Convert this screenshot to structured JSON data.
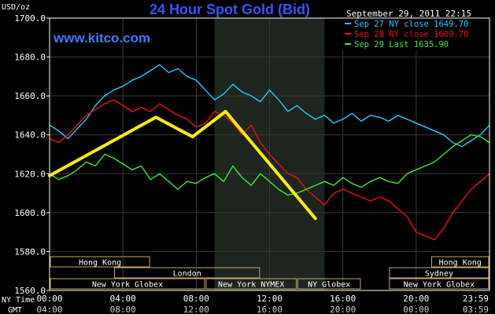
{
  "chart_data": {
    "type": "line",
    "title": "24 Hour Spot Gold (Bid)",
    "ylabel": "USD/oz",
    "watermark": "www.kitco.com",
    "datetime": "September 29, 2011 22:15",
    "ylim": [
      1560,
      1700
    ],
    "yticks": [
      1560,
      1580,
      1600,
      1620,
      1640,
      1660,
      1680,
      1700
    ],
    "ytick_labels": [
      "1560.0",
      "1580.0",
      "1600.0",
      "1620.0",
      "1640.0",
      "1660.0",
      "1680.0",
      "1700.0"
    ],
    "xlim": [
      0,
      24
    ],
    "xtick_labels": [
      {
        "hour": 0,
        "ny": "00:00",
        "gmt": "04:00"
      },
      {
        "hour": 4,
        "ny": "04:00",
        "gmt": "08:00"
      },
      {
        "hour": 8,
        "ny": "08:00",
        "gmt": "12:00"
      },
      {
        "hour": 12,
        "ny": "12:00",
        "gmt": "16:00"
      },
      {
        "hour": 16,
        "ny": "16:00",
        "gmt": "20:00"
      },
      {
        "hour": 20,
        "ny": "20:00",
        "gmt": "00:00"
      },
      {
        "hour": 24,
        "ny": "23:59",
        "gmt": "03:59"
      }
    ],
    "xaxis_row_labels": [
      "NY Time",
      "GMT"
    ],
    "shaded_region": [
      9,
      15
    ],
    "grid": true,
    "legend_placement": "top-right",
    "colors": {
      "background": "#000000",
      "frame": "#ffffff",
      "grid": "#3a3a3a",
      "shade": "#1e241e",
      "text": "#ffffff",
      "title": "#3355ff",
      "watermark": "#4477ff",
      "market_text": "#ffffff",
      "market_box": "#c9a86a"
    },
    "series": [
      {
        "name": "Sep 27 NY close 1649.70",
        "color": "#22ccff",
        "x": [
          0,
          0.5,
          1,
          1.5,
          2,
          2.5,
          3,
          3.5,
          4,
          4.5,
          5,
          5.5,
          6,
          6.5,
          7,
          7.5,
          8,
          8.5,
          9,
          9.5,
          10,
          10.5,
          11,
          11.5,
          12,
          12.5,
          13,
          13.5,
          14,
          14.5,
          15,
          15.5,
          16,
          16.5,
          17,
          17.5,
          18,
          18.5,
          19,
          19.5,
          20,
          20.5,
          21,
          21.5,
          22,
          22.5,
          23,
          23.5,
          24
        ],
        "y": [
          1645,
          1642,
          1638,
          1643,
          1648,
          1655,
          1660,
          1663,
          1665,
          1668,
          1670,
          1673,
          1676,
          1672,
          1674,
          1670,
          1668,
          1663,
          1658,
          1661,
          1666,
          1662,
          1660,
          1657,
          1663,
          1658,
          1652,
          1655,
          1651,
          1648,
          1650,
          1646,
          1648,
          1651,
          1647,
          1650,
          1649,
          1647,
          1650,
          1648,
          1646,
          1644,
          1642,
          1640,
          1636,
          1634,
          1637,
          1640,
          1645
        ]
      },
      {
        "name": "Sep 28 NY close 1609.70",
        "color": "#ee1111",
        "x": [
          0,
          0.5,
          1,
          1.5,
          2,
          2.5,
          3,
          3.5,
          4,
          4.5,
          5,
          5.5,
          6,
          6.5,
          7,
          7.5,
          8,
          8.5,
          9,
          9.5,
          10,
          10.5,
          11,
          11.5,
          12,
          12.5,
          13,
          13.5,
          14,
          14.5,
          15,
          15.5,
          16,
          16.5,
          17,
          17.5,
          18,
          18.5,
          19,
          19.5,
          20,
          20.5,
          21,
          21.5,
          22,
          22.5,
          23,
          23.5,
          24
        ],
        "y": [
          1638,
          1636,
          1640,
          1645,
          1650,
          1653,
          1656,
          1658,
          1655,
          1652,
          1654,
          1652,
          1656,
          1653,
          1650,
          1648,
          1644,
          1646,
          1652,
          1650,
          1646,
          1640,
          1645,
          1636,
          1630,
          1625,
          1620,
          1618,
          1612,
          1608,
          1604,
          1610,
          1612,
          1610,
          1608,
          1606,
          1608,
          1606,
          1602,
          1598,
          1590,
          1588,
          1586,
          1592,
          1600,
          1606,
          1612,
          1616,
          1620
        ]
      },
      {
        "name": "Sep 29 Last 1635.90",
        "color": "#33ee33",
        "x": [
          0,
          0.5,
          1,
          1.5,
          2,
          2.5,
          3,
          3.5,
          4,
          4.5,
          5,
          5.5,
          6,
          6.5,
          7,
          7.5,
          8,
          8.5,
          9,
          9.5,
          10,
          10.5,
          11,
          11.5,
          12,
          12.5,
          13,
          13.5,
          14,
          14.5,
          15,
          15.5,
          16,
          16.5,
          17,
          17.5,
          18,
          18.5,
          19,
          19.5,
          20,
          20.5,
          21,
          21.5,
          22,
          22.5,
          23,
          23.5,
          24
        ],
        "y": [
          1620,
          1617,
          1619,
          1622,
          1626,
          1624,
          1630,
          1628,
          1625,
          1622,
          1624,
          1617,
          1620,
          1616,
          1612,
          1616,
          1615,
          1618,
          1620,
          1616,
          1624,
          1618,
          1614,
          1620,
          1616,
          1612,
          1609,
          1610,
          1612,
          1614,
          1616,
          1614,
          1618,
          1615,
          1613,
          1616,
          1618,
          1616,
          1615,
          1620,
          1622,
          1624,
          1626,
          1630,
          1634,
          1637,
          1640,
          1639,
          1636
        ]
      },
      {
        "color": "#ffee00",
        "x": [
          0,
          5.8,
          7.8,
          9.6,
          14.5
        ],
        "y": [
          1619,
          1649,
          1639,
          1652,
          1597
        ]
      }
    ],
    "market_rows": [
      [
        {
          "label": "Hong Kong",
          "start": 0,
          "end": 5.5
        },
        {
          "label": "Hong Kong",
          "start": 20.8,
          "end": 24
        }
      ],
      [
        {
          "label": "London",
          "start": 3.5,
          "end": 11.5
        },
        {
          "label": "Sydney",
          "start": 18.5,
          "end": 24
        }
      ],
      [
        {
          "label": "New York Globex",
          "start": 0,
          "end": 8.5
        },
        {
          "label": "New York NYMEX",
          "start": 8.5,
          "end": 13.5
        },
        {
          "label": "NY Globex",
          "start": 13.5,
          "end": 17
        },
        {
          "label": "New York Globex",
          "start": 18.5,
          "end": 24
        }
      ]
    ]
  }
}
